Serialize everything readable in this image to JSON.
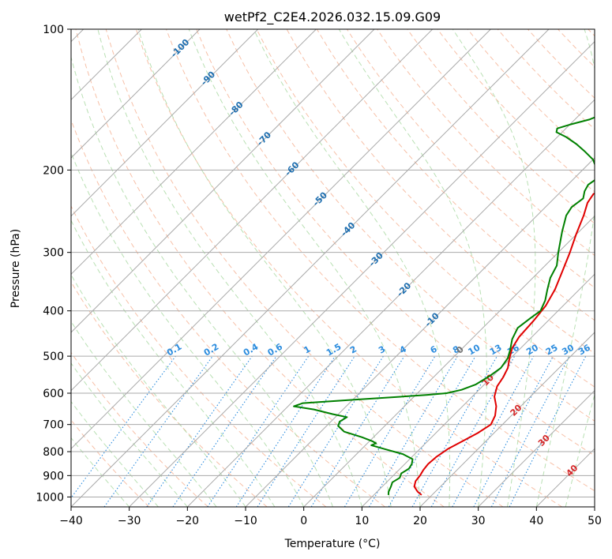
{
  "chart_data": {
    "type": "line",
    "title": "wetPf2_C2E4.2026.032.15.09.G09",
    "xlabel": "Temperature (°C)",
    "ylabel": "Pressure (hPa)",
    "xlim": [
      -40,
      50
    ],
    "ylim": [
      1050,
      100
    ],
    "x_ticks": [
      -40,
      -30,
      -20,
      -10,
      0,
      10,
      20,
      30,
      40,
      50
    ],
    "y_ticks": [
      100,
      200,
      300,
      400,
      500,
      600,
      700,
      800,
      900,
      1000
    ],
    "skew": 1.0,
    "grid": true,
    "colors": {
      "temperature": "#e00000",
      "dewpoint": "#008000",
      "isotherm": "#aaaaaa",
      "dry_adiabat": "#f4a582",
      "moist_adiabat": "#a8d8a0",
      "mixing_ratio": "#2b8cde",
      "mixing_label": "#2b8cde",
      "isotherm_label": "#1f6fb0",
      "adiabat_label": "#d62728",
      "zero_label": "#707070"
    },
    "series": [
      {
        "name": "Temperature",
        "points": [
          [
            18.2,
            990
          ],
          [
            17,
            975
          ],
          [
            15.5,
            950
          ],
          [
            14.8,
            925
          ],
          [
            14.6,
            900
          ],
          [
            14.2,
            875
          ],
          [
            14.0,
            850
          ],
          [
            14.2,
            820
          ],
          [
            14.8,
            790
          ],
          [
            16.0,
            760
          ],
          [
            17.2,
            730
          ],
          [
            18.0,
            700
          ],
          [
            17.2,
            670
          ],
          [
            15.8,
            640
          ],
          [
            13.8,
            610
          ],
          [
            12.5,
            580
          ],
          [
            12.0,
            555
          ],
          [
            11.2,
            530
          ],
          [
            9.8,
            505
          ],
          [
            8.5,
            480
          ],
          [
            7.8,
            455
          ],
          [
            7.5,
            420
          ],
          [
            7.0,
            390
          ],
          [
            5.8,
            360
          ],
          [
            4.0,
            330
          ],
          [
            2.0,
            300
          ],
          [
            0.0,
            275
          ],
          [
            -2.0,
            250
          ],
          [
            -3.5,
            235
          ],
          [
            -4.0,
            225
          ],
          [
            -2.5,
            218
          ],
          [
            1.0,
            210
          ],
          [
            4.0,
            200
          ],
          [
            6.5,
            188
          ],
          [
            8.0,
            178
          ],
          [
            9.5,
            168
          ],
          [
            10.0,
            160
          ],
          [
            9.0,
            152
          ],
          [
            7.0,
            145
          ],
          [
            5.5,
            138
          ],
          [
            5.0,
            132
          ],
          [
            5.5,
            125
          ],
          [
            7.0,
            118
          ],
          [
            10.5,
            110
          ],
          [
            12.5,
            104
          ],
          [
            13.5,
            100
          ]
        ]
      },
      {
        "name": "Dewpoint",
        "points": [
          [
            12.5,
            990
          ],
          [
            12.0,
            975
          ],
          [
            11.5,
            950
          ],
          [
            11.0,
            930
          ],
          [
            11.5,
            910
          ],
          [
            11.0,
            890
          ],
          [
            11.5,
            870
          ],
          [
            11.2,
            850
          ],
          [
            10.5,
            830
          ],
          [
            8.0,
            810
          ],
          [
            4.0,
            790
          ],
          [
            1.0,
            775
          ],
          [
            1.5,
            768
          ],
          [
            0.5,
            760
          ],
          [
            -2.0,
            745
          ],
          [
            -6.0,
            725
          ],
          [
            -8.0,
            705
          ],
          [
            -8.5,
            690
          ],
          [
            -8.0,
            675
          ],
          [
            -11.0,
            665
          ],
          [
            -15.0,
            650
          ],
          [
            -19.0,
            640
          ],
          [
            -18.0,
            630
          ],
          [
            -10.0,
            620
          ],
          [
            -2.0,
            610
          ],
          [
            2.0,
            605
          ],
          [
            5.0,
            600
          ],
          [
            7.0,
            590
          ],
          [
            8.5,
            575
          ],
          [
            9.5,
            550
          ],
          [
            10.0,
            530
          ],
          [
            9.5,
            505
          ],
          [
            8.5,
            485
          ],
          [
            7.0,
            460
          ],
          [
            6.0,
            435
          ],
          [
            6.5,
            415
          ],
          [
            7.0,
            400
          ],
          [
            6.0,
            380
          ],
          [
            4.5,
            360
          ],
          [
            3.0,
            340
          ],
          [
            2.0,
            320
          ],
          [
            0.0,
            300
          ],
          [
            -3.0,
            270
          ],
          [
            -5.0,
            250
          ],
          [
            -5.5,
            240
          ],
          [
            -5.0,
            230
          ],
          [
            -6.0,
            222
          ],
          [
            -6.5,
            215
          ],
          [
            -6.0,
            208
          ],
          [
            -7.5,
            200
          ],
          [
            -10.0,
            190
          ],
          [
            -13.0,
            182
          ],
          [
            -15.5,
            176
          ],
          [
            -18.5,
            170
          ],
          [
            -21.0,
            166
          ],
          [
            -21.5,
            163
          ],
          [
            -20.0,
            160
          ],
          [
            -17.5,
            156
          ],
          [
            -15.5,
            150
          ],
          [
            -14.5,
            144
          ],
          [
            -13.5,
            136
          ],
          [
            -12.0,
            128
          ],
          [
            -11.0,
            120
          ],
          [
            -10.5,
            115
          ],
          [
            -9.8,
            110
          ],
          [
            -9.0,
            105
          ],
          [
            -8.5,
            100
          ]
        ]
      }
    ],
    "isotherm_labels": [
      "-100",
      "-90",
      "-80",
      "-70",
      "-60",
      "-50",
      "-40",
      "-30",
      "-20",
      "-10",
      "0",
      "10",
      "20",
      "30",
      "40"
    ],
    "mixing_ratio_labels": [
      "0.1",
      "0.2",
      "0.4",
      "0.6",
      "1",
      "1.5",
      "2",
      "3",
      "4",
      "6",
      "8",
      "10",
      "13",
      "16",
      "20",
      "25",
      "30",
      "36"
    ]
  }
}
